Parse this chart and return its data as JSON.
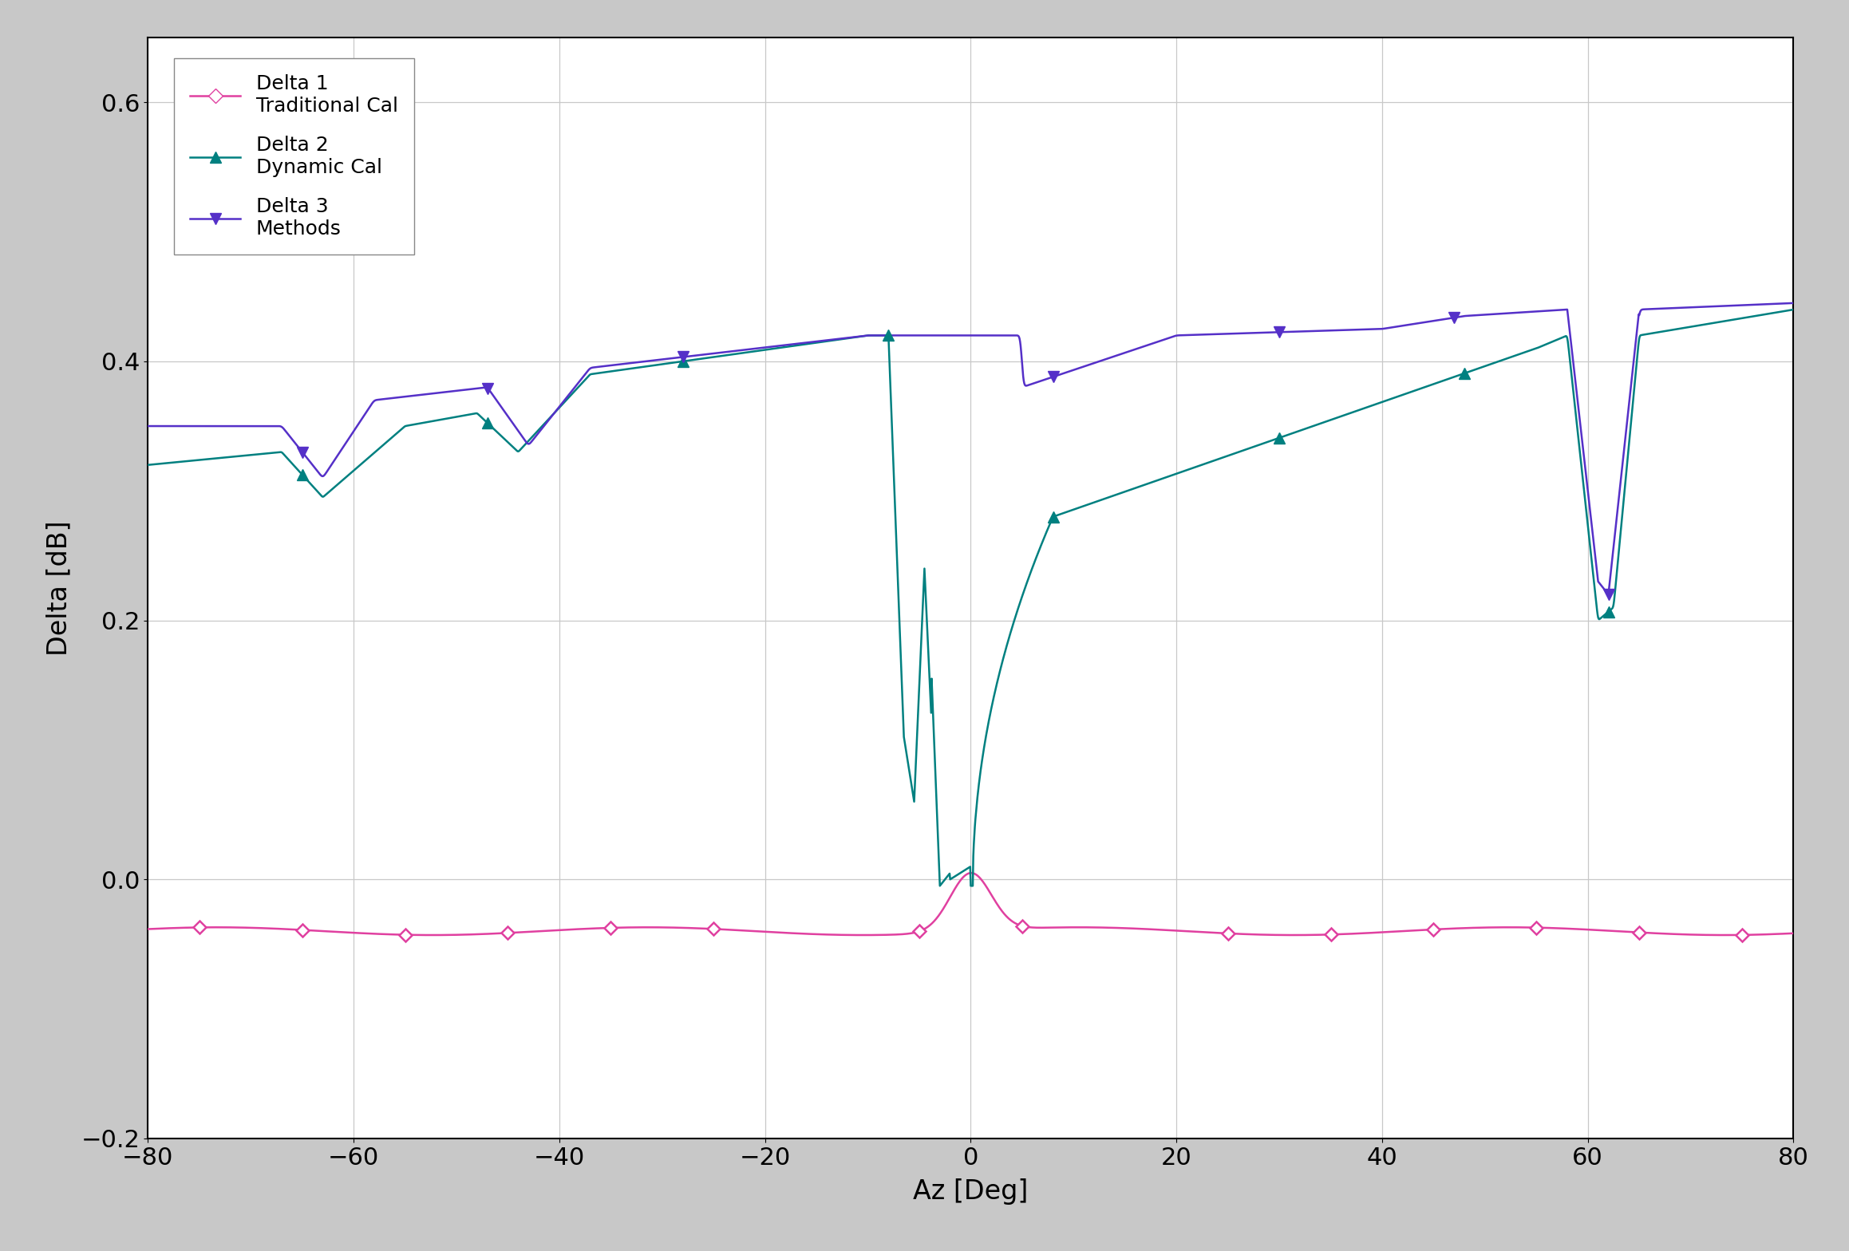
{
  "title": "",
  "xlabel": "Az [Deg]",
  "ylabel": "Delta [dB]",
  "xlim": [
    -80,
    80
  ],
  "ylim": [
    -0.2,
    0.65
  ],
  "yticks": [
    -0.2,
    0.0,
    0.2,
    0.4,
    0.6
  ],
  "xticks": [
    -80,
    -60,
    -40,
    -20,
    0,
    20,
    40,
    60,
    80
  ],
  "grid_color": "#c8c8c8",
  "background_color": "#ffffff",
  "outer_background": "#c8c8c8",
  "legend_labels": [
    "Delta 1\nTraditional Cal",
    "Delta 2\nDynamic Cal",
    "Delta 3\nMethods"
  ],
  "colors": {
    "delta1": "#e040a0",
    "delta2": "#008080",
    "delta3": "#5530c8"
  },
  "marker_size": 8,
  "linewidth": 1.8
}
